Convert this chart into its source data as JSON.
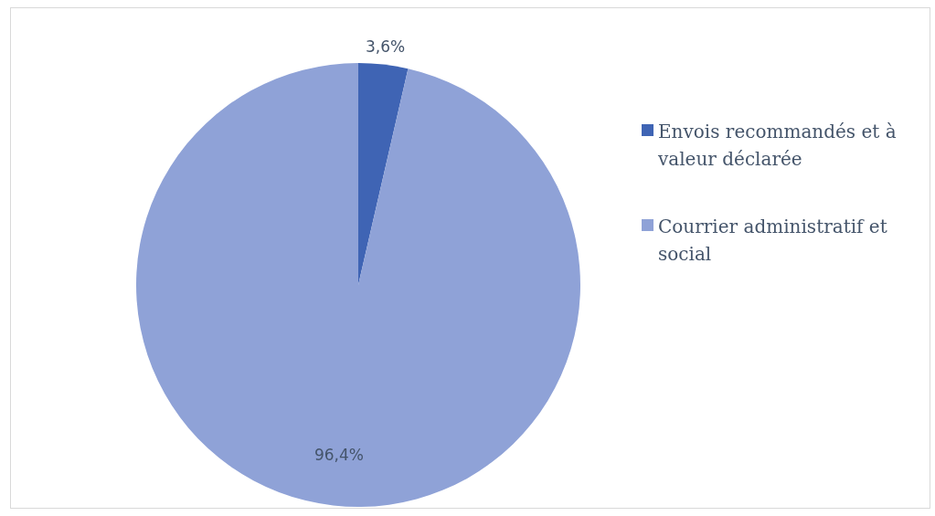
{
  "chart_data": {
    "type": "pie",
    "categories": [
      "Envois recommandés et à valeur déclarée",
      "Courrier administratif et social"
    ],
    "values": [
      3.6,
      96.4
    ],
    "colors": [
      "#3f64b4",
      "#8fa2d7"
    ],
    "value_labels": [
      "3,6%",
      "96,4%"
    ],
    "legend": "right"
  }
}
